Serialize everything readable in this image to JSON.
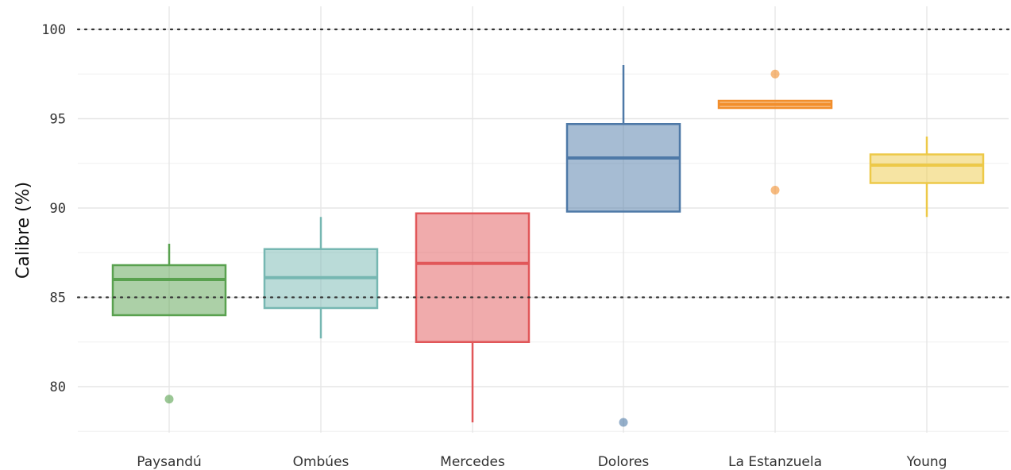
{
  "chart_data": {
    "type": "box",
    "title": "",
    "xlabel": "",
    "ylabel": "Calibre (%)",
    "ylim": [
      77.5,
      101.5
    ],
    "yticks": [
      80,
      85,
      90,
      95,
      100
    ],
    "grid": true,
    "reference_lines": [
      85,
      100
    ],
    "categories": [
      "Paysandú",
      "Ombúes",
      "Mercedes",
      "Dolores",
      "La Estanzuela",
      "Young"
    ],
    "series": [
      {
        "category": "Paysandú",
        "color": "#59a14f",
        "whisker_low": 84.0,
        "q1": 84.0,
        "median": 86.0,
        "q3": 86.8,
        "whisker_high": 88.0,
        "outliers": [
          79.3
        ]
      },
      {
        "category": "Ombúes",
        "color": "#76b7b2",
        "whisker_low": 82.7,
        "q1": 84.4,
        "median": 86.1,
        "q3": 87.7,
        "whisker_high": 89.5,
        "outliers": []
      },
      {
        "category": "Mercedes",
        "color": "#e15759",
        "whisker_low": 78.0,
        "q1": 82.5,
        "median": 86.9,
        "q3": 89.7,
        "whisker_high": 89.7,
        "outliers": []
      },
      {
        "category": "Dolores",
        "color": "#4e79a7",
        "whisker_low": 89.8,
        "q1": 89.8,
        "median": 92.8,
        "q3": 94.7,
        "whisker_high": 98.0,
        "outliers": [
          78.0
        ]
      },
      {
        "category": "La Estanzuela",
        "color": "#f28e2b",
        "whisker_low": 95.6,
        "q1": 95.6,
        "median": 95.8,
        "q3": 96.0,
        "whisker_high": 96.0,
        "outliers": [
          97.5,
          91.0
        ]
      },
      {
        "category": "Young",
        "color": "#edc948",
        "whisker_low": 89.5,
        "q1": 91.4,
        "median": 92.4,
        "q3": 93.0,
        "whisker_high": 94.0,
        "outliers": []
      }
    ]
  }
}
